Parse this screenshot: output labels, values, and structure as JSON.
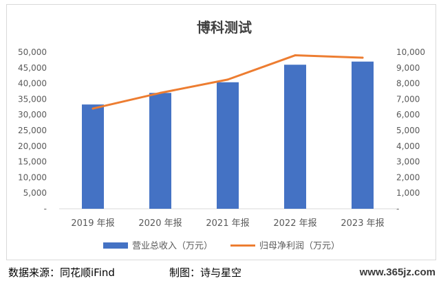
{
  "chart_data": {
    "type": "bar",
    "title": "博科测试",
    "categories": [
      "2019 年报",
      "2020 年报",
      "2021 年报",
      "2022 年报",
      "2023 年报"
    ],
    "series": [
      {
        "name": "营业总收入（万元）",
        "type": "bar",
        "axis": "left",
        "color": "#4472c4",
        "values": [
          33300,
          37000,
          40400,
          46000,
          47000
        ]
      },
      {
        "name": "归母净利润（万元）",
        "type": "line",
        "axis": "right",
        "color": "#ed7d31",
        "values": [
          6400,
          7400,
          8250,
          9800,
          9650
        ]
      }
    ],
    "y_left": {
      "min": 0,
      "max": 50000,
      "step": 5000,
      "tick_labels": [
        "-",
        "5,000",
        "10,000",
        "15,000",
        "20,000",
        "25,000",
        "30,000",
        "35,000",
        "40,000",
        "45,000",
        "50,000"
      ]
    },
    "y_right": {
      "min": 0,
      "max": 10000,
      "step": 1000,
      "tick_labels": [
        "-",
        "1,000",
        "2,000",
        "3,000",
        "4,000",
        "5,000",
        "6,000",
        "7,000",
        "8,000",
        "9,000",
        "10,000"
      ]
    },
    "grid": false,
    "legend_position": "bottom"
  },
  "footer": {
    "source": "数据来源：同花顺iFind",
    "credit": "制图：诗与星空",
    "watermark": "www.365jz.com"
  }
}
